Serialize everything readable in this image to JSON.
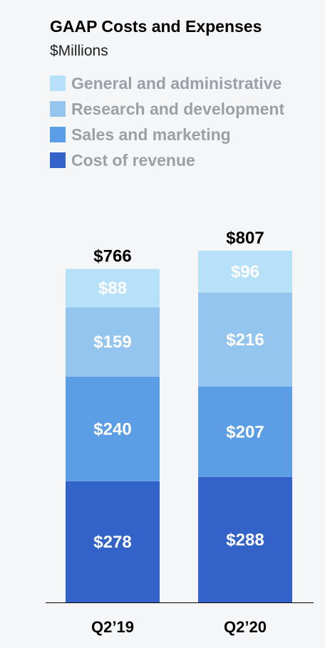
{
  "chart_data": {
    "type": "bar",
    "stacked": true,
    "title": "GAAP Costs and Expenses",
    "subtitle": "$Millions",
    "categories": [
      "Q2’19",
      "Q2’20"
    ],
    "series": [
      {
        "name": "Cost of revenue",
        "color": "#3363c8",
        "values": [
          278,
          288
        ],
        "labels": [
          "$278",
          "$288"
        ]
      },
      {
        "name": "Sales and marketing",
        "color": "#5c9ee6",
        "values": [
          240,
          207
        ],
        "labels": [
          "$240",
          "$207"
        ]
      },
      {
        "name": "Research and development",
        "color": "#94c5ef",
        "values": [
          159,
          216
        ],
        "labels": [
          "$159",
          "$216"
        ]
      },
      {
        "name": "General and administrative",
        "color": "#b7e0f9",
        "values": [
          88,
          96
        ],
        "labels": [
          "$88",
          "$96"
        ]
      }
    ],
    "totals": [
      766,
      807
    ],
    "total_labels": [
      "$766",
      "$807"
    ],
    "legend_order": [
      3,
      2,
      1,
      0
    ],
    "legend_position": "top",
    "grid": false,
    "ylim": [
      0,
      807
    ]
  }
}
